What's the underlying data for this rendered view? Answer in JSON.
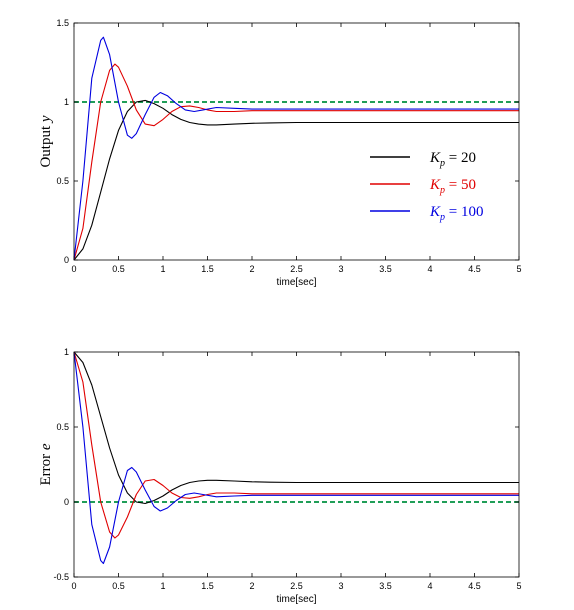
{
  "chart_data": [
    {
      "type": "line",
      "title": "",
      "xlabel": "time[sec]",
      "ylabel_text": "Output",
      "ylabel_var": "y",
      "xlim": [
        0,
        5
      ],
      "ylim": [
        0,
        1.5
      ],
      "xticks": [
        "0",
        "0.5",
        "1",
        "1.5",
        "2",
        "2.5",
        "3",
        "3.5",
        "4",
        "4.5",
        "5"
      ],
      "yticks": [
        "0",
        "0.5",
        "1",
        "1.5"
      ],
      "grid": false,
      "legend_position": "right",
      "legend": [
        {
          "var": "K",
          "sub": "p",
          "rest": " = 20",
          "color": "#000000"
        },
        {
          "var": "K",
          "sub": "p",
          "rest": " = 50",
          "color": "#e00000"
        },
        {
          "var": "K",
          "sub": "p",
          "rest": " = 100",
          "color": "#0000e0"
        }
      ],
      "reference": {
        "y": 1,
        "color": "#009040",
        "dashed": true
      },
      "series": [
        {
          "color": "#000000",
          "x": [
            0,
            0.1,
            0.2,
            0.3,
            0.4,
            0.5,
            0.6,
            0.7,
            0.8,
            0.9,
            1.0,
            1.1,
            1.2,
            1.3,
            1.4,
            1.5,
            1.6,
            1.8,
            2.0,
            2.2,
            2.5,
            3.0,
            4.0,
            5.0
          ],
          "y": [
            0,
            0.07,
            0.22,
            0.43,
            0.64,
            0.82,
            0.94,
            1.0,
            1.01,
            0.99,
            0.96,
            0.92,
            0.89,
            0.87,
            0.86,
            0.855,
            0.855,
            0.86,
            0.865,
            0.868,
            0.87,
            0.87,
            0.87,
            0.87
          ]
        },
        {
          "color": "#e00000",
          "x": [
            0,
            0.1,
            0.2,
            0.3,
            0.4,
            0.46,
            0.5,
            0.6,
            0.7,
            0.8,
            0.9,
            1.0,
            1.1,
            1.2,
            1.3,
            1.4,
            1.5,
            1.6,
            1.8,
            2.0,
            2.5,
            3.0,
            4.0,
            5.0
          ],
          "y": [
            0,
            0.2,
            0.62,
            1.0,
            1.2,
            1.24,
            1.22,
            1.1,
            0.95,
            0.86,
            0.85,
            0.89,
            0.94,
            0.97,
            0.975,
            0.965,
            0.95,
            0.94,
            0.94,
            0.945,
            0.945,
            0.945,
            0.945,
            0.945
          ]
        },
        {
          "color": "#0000e0",
          "x": [
            0,
            0.1,
            0.2,
            0.3,
            0.33,
            0.4,
            0.5,
            0.6,
            0.65,
            0.7,
            0.8,
            0.9,
            0.97,
            1.05,
            1.15,
            1.25,
            1.35,
            1.45,
            1.6,
            1.8,
            2.0,
            2.5,
            3.0,
            4.0,
            5.0
          ],
          "y": [
            0,
            0.5,
            1.15,
            1.39,
            1.41,
            1.3,
            1.0,
            0.79,
            0.77,
            0.8,
            0.92,
            1.03,
            1.06,
            1.04,
            0.99,
            0.95,
            0.94,
            0.95,
            0.965,
            0.96,
            0.955,
            0.955,
            0.955,
            0.955,
            0.955
          ]
        }
      ]
    },
    {
      "type": "line",
      "title": "",
      "xlabel": "time[sec]",
      "ylabel_text": "Error",
      "ylabel_var": "e",
      "xlim": [
        0,
        5
      ],
      "ylim": [
        -0.5,
        1
      ],
      "xticks": [
        "0",
        "0.5",
        "1",
        "1.5",
        "2",
        "2.5",
        "3",
        "3.5",
        "4",
        "4.5",
        "5"
      ],
      "yticks": [
        "-0.5",
        "0",
        "0.5",
        "1"
      ],
      "grid": false,
      "reference": {
        "y": 0,
        "color": "#009040",
        "dashed": true
      },
      "series": [
        {
          "color": "#000000",
          "x": [
            0,
            0.1,
            0.2,
            0.3,
            0.4,
            0.5,
            0.6,
            0.7,
            0.8,
            0.9,
            1.0,
            1.1,
            1.2,
            1.3,
            1.4,
            1.5,
            1.6,
            1.8,
            2.0,
            2.2,
            2.5,
            3.0,
            4.0,
            5.0
          ],
          "y": [
            1,
            0.93,
            0.78,
            0.57,
            0.36,
            0.18,
            0.06,
            0.0,
            -0.01,
            0.01,
            0.04,
            0.08,
            0.11,
            0.13,
            0.14,
            0.145,
            0.145,
            0.14,
            0.135,
            0.132,
            0.13,
            0.13,
            0.13,
            0.13
          ]
        },
        {
          "color": "#e00000",
          "x": [
            0,
            0.1,
            0.2,
            0.3,
            0.4,
            0.46,
            0.5,
            0.6,
            0.7,
            0.8,
            0.9,
            1.0,
            1.1,
            1.2,
            1.3,
            1.4,
            1.5,
            1.6,
            1.8,
            2.0,
            2.5,
            3.0,
            4.0,
            5.0
          ],
          "y": [
            1,
            0.8,
            0.38,
            0.0,
            -0.2,
            -0.24,
            -0.22,
            -0.1,
            0.05,
            0.14,
            0.15,
            0.11,
            0.06,
            0.03,
            0.025,
            0.035,
            0.05,
            0.06,
            0.06,
            0.055,
            0.055,
            0.055,
            0.055,
            0.055
          ]
        },
        {
          "color": "#0000e0",
          "x": [
            0,
            0.1,
            0.2,
            0.3,
            0.33,
            0.4,
            0.5,
            0.6,
            0.65,
            0.7,
            0.8,
            0.9,
            0.97,
            1.05,
            1.15,
            1.25,
            1.35,
            1.45,
            1.6,
            1.8,
            2.0,
            2.5,
            3.0,
            4.0,
            5.0
          ],
          "y": [
            1,
            0.5,
            -0.15,
            -0.39,
            -0.41,
            -0.3,
            0.0,
            0.21,
            0.23,
            0.2,
            0.08,
            -0.03,
            -0.06,
            -0.04,
            0.01,
            0.05,
            0.06,
            0.05,
            0.035,
            0.04,
            0.045,
            0.045,
            0.045,
            0.045,
            0.045
          ]
        }
      ]
    }
  ]
}
